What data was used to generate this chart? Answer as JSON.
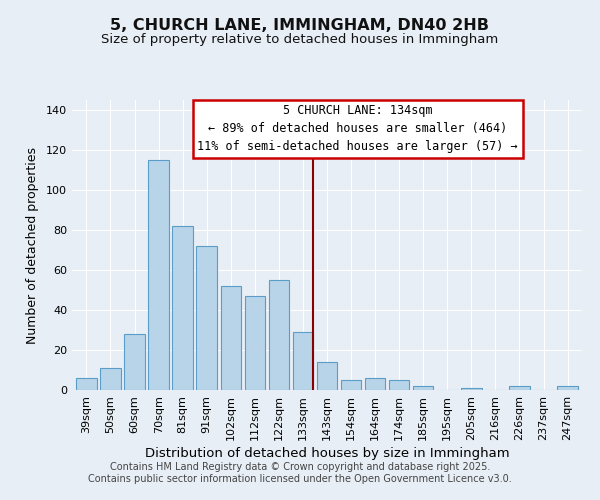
{
  "title": "5, CHURCH LANE, IMMINGHAM, DN40 2HB",
  "subtitle": "Size of property relative to detached houses in Immingham",
  "xlabel": "Distribution of detached houses by size in Immingham",
  "ylabel": "Number of detached properties",
  "bar_labels": [
    "39sqm",
    "50sqm",
    "60sqm",
    "70sqm",
    "81sqm",
    "91sqm",
    "102sqm",
    "112sqm",
    "122sqm",
    "133sqm",
    "143sqm",
    "154sqm",
    "164sqm",
    "174sqm",
    "185sqm",
    "195sqm",
    "205sqm",
    "216sqm",
    "226sqm",
    "237sqm",
    "247sqm"
  ],
  "bar_values": [
    6,
    11,
    28,
    115,
    82,
    72,
    52,
    47,
    55,
    29,
    14,
    5,
    6,
    5,
    2,
    0,
    1,
    0,
    2,
    0,
    2
  ],
  "bar_color": "#b8d4e8",
  "bar_edge_color": "#5a9ec8",
  "vline_color": "#8b0000",
  "annotation_text": "5 CHURCH LANE: 134sqm\n← 89% of detached houses are smaller (464)\n11% of semi-detached houses are larger (57) →",
  "annotation_box_edge_color": "#cc0000",
  "annotation_box_fill": "#ffffff",
  "ylim": [
    0,
    145
  ],
  "yticks": [
    0,
    20,
    40,
    60,
    80,
    100,
    120,
    140
  ],
  "background_color": "#e8eef5",
  "plot_bg_color": "#e8eef5",
  "footer1": "Contains HM Land Registry data © Crown copyright and database right 2025.",
  "footer2": "Contains public sector information licensed under the Open Government Licence v3.0.",
  "title_fontsize": 11.5,
  "subtitle_fontsize": 9.5,
  "xlabel_fontsize": 9.5,
  "ylabel_fontsize": 9,
  "tick_fontsize": 8,
  "footer_fontsize": 7,
  "annotation_fontsize": 8.5
}
